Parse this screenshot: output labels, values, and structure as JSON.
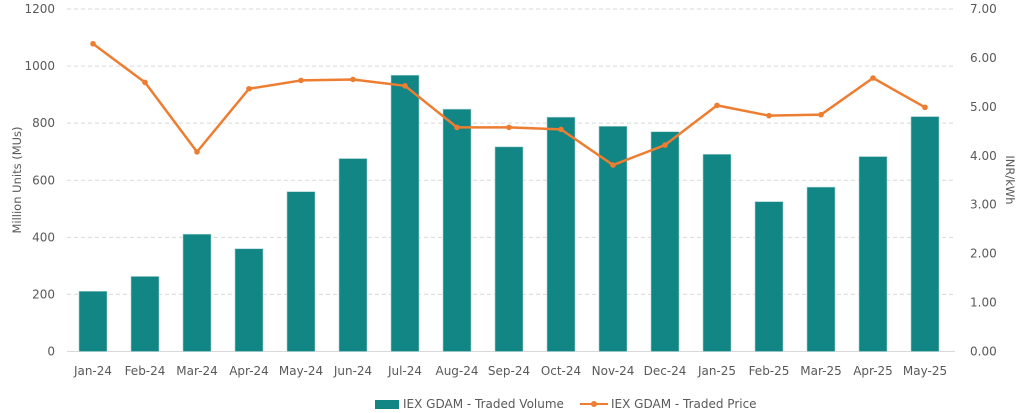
{
  "chart_data": {
    "type": "bar+line",
    "title": "",
    "categories": [
      "Jan-24",
      "Feb-24",
      "Mar-24",
      "Apr-24",
      "May-24",
      "Jun-24",
      "Jul-24",
      "Aug-24",
      "Sep-24",
      "Oct-24",
      "Nov-24",
      "Dec-24",
      "Jan-25",
      "Feb-25",
      "Mar-25",
      "Apr-25",
      "May-25"
    ],
    "series": [
      {
        "name": "IEX GDAM - Traded Volume",
        "type": "bar",
        "axis": "left",
        "color": "#128585",
        "values": [
          211,
          263,
          411,
          360,
          560,
          676,
          968,
          849,
          717,
          821,
          789,
          770,
          691,
          525,
          576,
          683,
          823
        ]
      },
      {
        "name": "IEX GDAM - Traded Price",
        "type": "line",
        "axis": "right",
        "color": "#ED7D31",
        "values": [
          6.29,
          5.5,
          4.08,
          5.37,
          5.54,
          5.56,
          5.43,
          4.58,
          4.58,
          4.54,
          3.81,
          4.22,
          5.03,
          4.82,
          4.84,
          5.59,
          4.99
        ]
      }
    ],
    "xlabel": "",
    "ylabel": "Million Units (MUs)",
    "y2label": "INR/kWh",
    "ylim": [
      0,
      1200
    ],
    "y2lim": [
      0,
      7
    ],
    "yticks": [
      "0",
      "200",
      "400",
      "600",
      "800",
      "1000",
      "1200"
    ],
    "y2ticks": [
      "0.00",
      "1.00",
      "2.00",
      "3.00",
      "4.00",
      "5.00",
      "6.00",
      "7.00"
    ],
    "grid": true,
    "legend_position": "bottom"
  },
  "legend": {
    "volume_label": "IEX GDAM - Traded Volume",
    "price_label": "IEX GDAM - Traded Price"
  }
}
